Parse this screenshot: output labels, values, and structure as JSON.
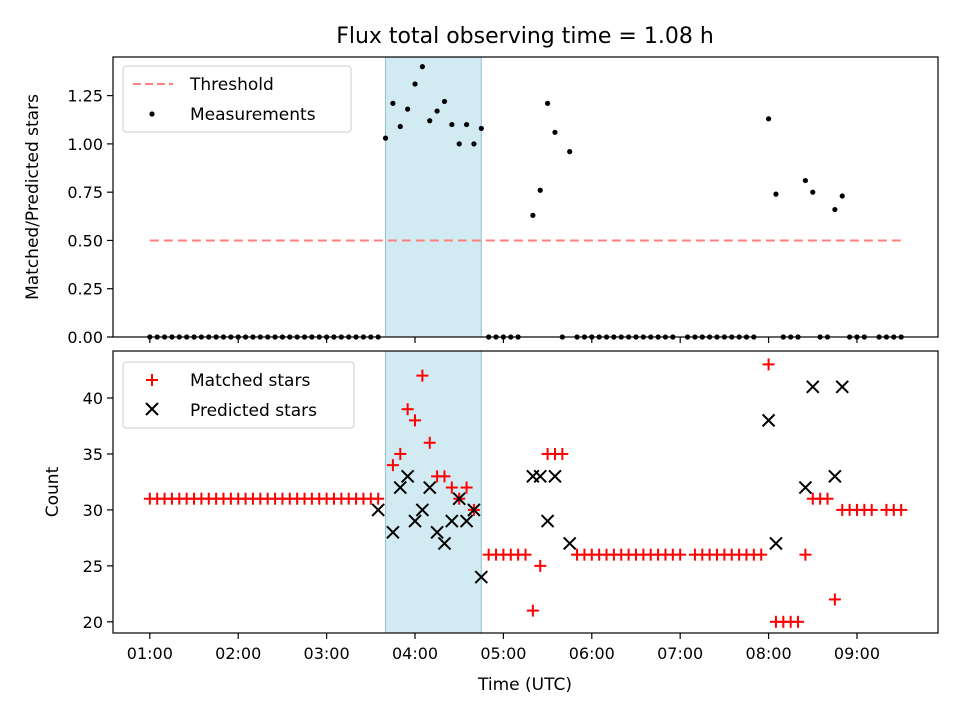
{
  "title": "Flux total observing time = 1.08 h",
  "chart_data": [
    {
      "type": "scatter",
      "ylabel": "Matched/Predicted stars",
      "ylim": [
        0,
        1.45
      ],
      "yticks": [
        0.0,
        0.25,
        0.5,
        0.75,
        1.0,
        1.25
      ],
      "ytick_labels": [
        "0.00",
        "0.25",
        "0.50",
        "0.75",
        "1.00",
        "1.25"
      ],
      "xlim": [
        "00:35",
        "09:55"
      ],
      "legend_position": "upper-left",
      "threshold": {
        "name": "Threshold",
        "value": 0.5,
        "x_range": [
          "01:00",
          "09:32"
        ],
        "color": "#ff8080",
        "style": "dashed"
      },
      "highlight_span": {
        "x_range": [
          "03:40",
          "04:45"
        ],
        "color": "#add8e6"
      },
      "series": [
        {
          "name": "Measurements",
          "marker": "dot",
          "color": "#000000",
          "points": [
            [
              "01:00",
              0
            ],
            [
              "01:05",
              0
            ],
            [
              "01:10",
              0
            ],
            [
              "01:15",
              0
            ],
            [
              "01:20",
              0
            ],
            [
              "01:25",
              0
            ],
            [
              "01:30",
              0
            ],
            [
              "01:35",
              0
            ],
            [
              "01:40",
              0
            ],
            [
              "01:45",
              0
            ],
            [
              "01:50",
              0
            ],
            [
              "01:55",
              0
            ],
            [
              "02:00",
              0
            ],
            [
              "02:05",
              0
            ],
            [
              "02:10",
              0
            ],
            [
              "02:15",
              0
            ],
            [
              "02:20",
              0
            ],
            [
              "02:25",
              0
            ],
            [
              "02:30",
              0
            ],
            [
              "02:35",
              0
            ],
            [
              "02:40",
              0
            ],
            [
              "02:45",
              0
            ],
            [
              "02:50",
              0
            ],
            [
              "02:55",
              0
            ],
            [
              "03:00",
              0
            ],
            [
              "03:05",
              0
            ],
            [
              "03:10",
              0
            ],
            [
              "03:15",
              0
            ],
            [
              "03:20",
              0
            ],
            [
              "03:25",
              0
            ],
            [
              "03:30",
              0
            ],
            [
              "03:35",
              0
            ],
            [
              "03:40",
              1.03
            ],
            [
              "03:45",
              1.21
            ],
            [
              "03:50",
              1.09
            ],
            [
              "03:55",
              1.18
            ],
            [
              "04:00",
              1.31
            ],
            [
              "04:05",
              1.4
            ],
            [
              "04:10",
              1.12
            ],
            [
              "04:15",
              1.17
            ],
            [
              "04:20",
              1.22
            ],
            [
              "04:25",
              1.1
            ],
            [
              "04:30",
              1.0
            ],
            [
              "04:35",
              1.1
            ],
            [
              "04:40",
              1.0
            ],
            [
              "04:45",
              1.08
            ],
            [
              "04:50",
              0
            ],
            [
              "04:55",
              0
            ],
            [
              "05:00",
              0
            ],
            [
              "05:05",
              0
            ],
            [
              "05:10",
              0
            ],
            [
              "05:20",
              0.63
            ],
            [
              "05:25",
              0.76
            ],
            [
              "05:30",
              1.21
            ],
            [
              "05:35",
              1.06
            ],
            [
              "05:45",
              0.96
            ],
            [
              "05:40",
              0
            ],
            [
              "05:50",
              0
            ],
            [
              "05:55",
              0
            ],
            [
              "06:00",
              0
            ],
            [
              "06:05",
              0
            ],
            [
              "06:10",
              0
            ],
            [
              "06:15",
              0
            ],
            [
              "06:20",
              0
            ],
            [
              "06:25",
              0
            ],
            [
              "06:30",
              0
            ],
            [
              "06:35",
              0
            ],
            [
              "06:40",
              0
            ],
            [
              "06:45",
              0
            ],
            [
              "06:50",
              0
            ],
            [
              "06:55",
              0
            ],
            [
              "07:05",
              0
            ],
            [
              "07:10",
              0
            ],
            [
              "07:15",
              0
            ],
            [
              "07:20",
              0
            ],
            [
              "07:25",
              0
            ],
            [
              "07:30",
              0
            ],
            [
              "07:35",
              0
            ],
            [
              "07:40",
              0
            ],
            [
              "07:45",
              0
            ],
            [
              "07:50",
              0
            ],
            [
              "08:00",
              1.13
            ],
            [
              "08:05",
              0.74
            ],
            [
              "08:10",
              0
            ],
            [
              "08:15",
              0
            ],
            [
              "08:20",
              0
            ],
            [
              "08:25",
              0.81
            ],
            [
              "08:30",
              0.75
            ],
            [
              "08:35",
              0
            ],
            [
              "08:40",
              0
            ],
            [
              "08:45",
              0.66
            ],
            [
              "08:50",
              0.73
            ],
            [
              "08:55",
              0
            ],
            [
              "09:00",
              0
            ],
            [
              "09:05",
              0
            ],
            [
              "09:15",
              0
            ],
            [
              "09:20",
              0
            ],
            [
              "09:25",
              0
            ],
            [
              "09:30",
              0
            ]
          ]
        }
      ]
    },
    {
      "type": "scatter",
      "xlabel": "Time (UTC)",
      "ylabel": "Count",
      "ylim": [
        19,
        44.2
      ],
      "yticks": [
        20,
        25,
        30,
        35,
        40
      ],
      "ytick_labels": [
        "20",
        "25",
        "30",
        "35",
        "40"
      ],
      "xlim": [
        "00:35",
        "09:55"
      ],
      "xticks": [
        "01:00",
        "02:00",
        "03:00",
        "04:00",
        "05:00",
        "06:00",
        "07:00",
        "08:00",
        "09:00"
      ],
      "legend_position": "upper-left",
      "highlight_span": {
        "x_range": [
          "03:40",
          "04:45"
        ],
        "color": "#add8e6"
      },
      "series": [
        {
          "name": "Matched stars",
          "marker": "plus",
          "color": "#ff0000",
          "points": [
            [
              "01:00",
              31
            ],
            [
              "01:05",
              31
            ],
            [
              "01:10",
              31
            ],
            [
              "01:15",
              31
            ],
            [
              "01:20",
              31
            ],
            [
              "01:25",
              31
            ],
            [
              "01:30",
              31
            ],
            [
              "01:35",
              31
            ],
            [
              "01:40",
              31
            ],
            [
              "01:45",
              31
            ],
            [
              "01:50",
              31
            ],
            [
              "01:55",
              31
            ],
            [
              "02:00",
              31
            ],
            [
              "02:05",
              31
            ],
            [
              "02:10",
              31
            ],
            [
              "02:15",
              31
            ],
            [
              "02:20",
              31
            ],
            [
              "02:25",
              31
            ],
            [
              "02:30",
              31
            ],
            [
              "02:35",
              31
            ],
            [
              "02:40",
              31
            ],
            [
              "02:45",
              31
            ],
            [
              "02:50",
              31
            ],
            [
              "02:55",
              31
            ],
            [
              "03:00",
              31
            ],
            [
              "03:05",
              31
            ],
            [
              "03:10",
              31
            ],
            [
              "03:15",
              31
            ],
            [
              "03:20",
              31
            ],
            [
              "03:25",
              31
            ],
            [
              "03:30",
              31
            ],
            [
              "03:35",
              31
            ],
            [
              "03:45",
              34
            ],
            [
              "03:50",
              35
            ],
            [
              "03:55",
              39
            ],
            [
              "04:00",
              38
            ],
            [
              "04:05",
              42
            ],
            [
              "04:10",
              36
            ],
            [
              "04:15",
              33
            ],
            [
              "04:20",
              33
            ],
            [
              "04:25",
              32
            ],
            [
              "04:30",
              31
            ],
            [
              "04:35",
              32
            ],
            [
              "04:40",
              30
            ],
            [
              "04:50",
              26
            ],
            [
              "04:55",
              26
            ],
            [
              "05:00",
              26
            ],
            [
              "05:05",
              26
            ],
            [
              "05:10",
              26
            ],
            [
              "05:15",
              26
            ],
            [
              "05:20",
              21
            ],
            [
              "05:25",
              25
            ],
            [
              "05:30",
              35
            ],
            [
              "05:35",
              35
            ],
            [
              "05:40",
              35
            ],
            [
              "05:50",
              26
            ],
            [
              "05:55",
              26
            ],
            [
              "06:00",
              26
            ],
            [
              "06:05",
              26
            ],
            [
              "06:10",
              26
            ],
            [
              "06:15",
              26
            ],
            [
              "06:20",
              26
            ],
            [
              "06:25",
              26
            ],
            [
              "06:30",
              26
            ],
            [
              "06:35",
              26
            ],
            [
              "06:40",
              26
            ],
            [
              "06:45",
              26
            ],
            [
              "06:50",
              26
            ],
            [
              "06:55",
              26
            ],
            [
              "07:00",
              26
            ],
            [
              "07:10",
              26
            ],
            [
              "07:15",
              26
            ],
            [
              "07:20",
              26
            ],
            [
              "07:25",
              26
            ],
            [
              "07:30",
              26
            ],
            [
              "07:35",
              26
            ],
            [
              "07:40",
              26
            ],
            [
              "07:45",
              26
            ],
            [
              "07:50",
              26
            ],
            [
              "07:55",
              26
            ],
            [
              "08:00",
              43
            ],
            [
              "08:05",
              20
            ],
            [
              "08:10",
              20
            ],
            [
              "08:15",
              20
            ],
            [
              "08:20",
              20
            ],
            [
              "08:25",
              26
            ],
            [
              "08:30",
              31
            ],
            [
              "08:35",
              31
            ],
            [
              "08:40",
              31
            ],
            [
              "08:45",
              22
            ],
            [
              "08:50",
              30
            ],
            [
              "08:55",
              30
            ],
            [
              "09:00",
              30
            ],
            [
              "09:05",
              30
            ],
            [
              "09:10",
              30
            ],
            [
              "09:20",
              30
            ],
            [
              "09:25",
              30
            ],
            [
              "09:30",
              30
            ]
          ]
        },
        {
          "name": "Predicted stars",
          "marker": "x",
          "color": "#000000",
          "points": [
            [
              "03:35",
              30
            ],
            [
              "03:45",
              28
            ],
            [
              "03:50",
              32
            ],
            [
              "03:55",
              33
            ],
            [
              "04:00",
              29
            ],
            [
              "04:05",
              30
            ],
            [
              "04:10",
              32
            ],
            [
              "04:15",
              28
            ],
            [
              "04:20",
              27
            ],
            [
              "04:25",
              29
            ],
            [
              "04:30",
              31
            ],
            [
              "04:35",
              29
            ],
            [
              "04:40",
              30
            ],
            [
              "04:45",
              24
            ],
            [
              "05:20",
              33
            ],
            [
              "05:25",
              33
            ],
            [
              "05:30",
              29
            ],
            [
              "05:35",
              33
            ],
            [
              "05:45",
              27
            ],
            [
              "08:00",
              38
            ],
            [
              "08:05",
              27
            ],
            [
              "08:25",
              32
            ],
            [
              "08:30",
              41
            ],
            [
              "08:45",
              33
            ],
            [
              "08:50",
              41
            ]
          ]
        }
      ]
    }
  ]
}
